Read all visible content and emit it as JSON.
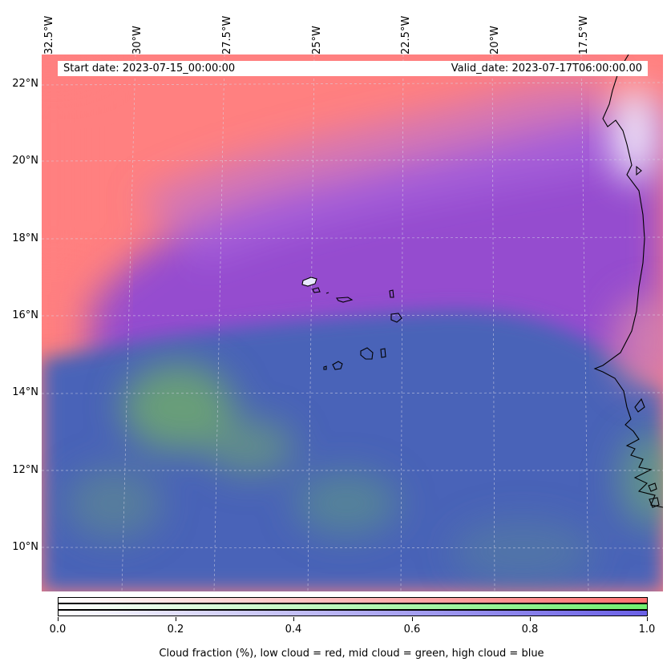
{
  "map": {
    "start_date": "Start date: 2023-07-15_00:00:00",
    "valid_date": "Valid_date: 2023-07-17T06:00:00.00",
    "lon_labels": [
      "32.5°W",
      "30°W",
      "27.5°W",
      "25°W",
      "22.5°W",
      "20°W",
      "17.5°W"
    ],
    "lat_labels": [
      "22°N",
      "20°N",
      "18°N",
      "16°N",
      "14°N",
      "12°N",
      "10°N"
    ],
    "lon_range": [
      -32.5,
      -15.0
    ],
    "lat_range": [
      8.9,
      22.7
    ],
    "projection": "rotated grid with dashed gridlines",
    "islands": "Cape Verde islands outlined in black",
    "coastline": "West African coast (Mauritania, Senegal) outlined in black"
  },
  "colorbar": {
    "title": "Cloud fraction (%), low cloud = red, mid cloud = green, high cloud = blue",
    "ticks": [
      "0.0",
      "0.2",
      "0.4",
      "0.6",
      "0.8",
      "1.0"
    ],
    "colors": {
      "low": "#ff7070",
      "mid": "#70f070",
      "high": "#6a60e6"
    }
  }
}
